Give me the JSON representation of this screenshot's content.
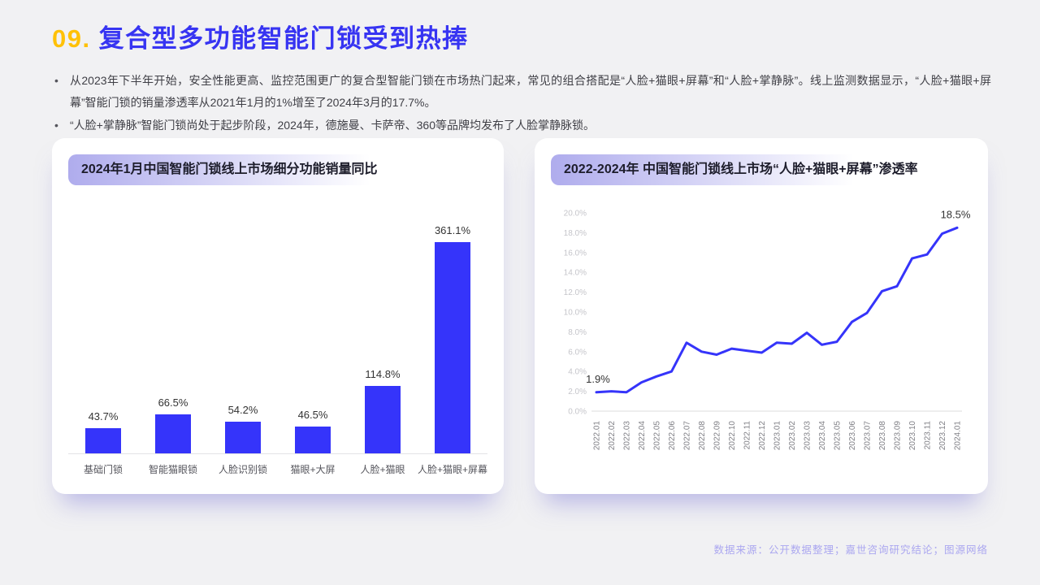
{
  "page": {
    "background": "#f1f1f3",
    "footer": "数据来源：公开数据整理；嘉世咨询研究结论；图源网络"
  },
  "header": {
    "number": "09.",
    "title": "复合型多功能智能门锁受到热捧"
  },
  "bullets": [
    "从2023年下半年开始，安全性能更高、监控范围更广的复合型智能门锁在市场热门起来，常见的组合搭配是“人脸+猫眼+屏幕”和“人脸+掌静脉”。线上监测数据显示，“人脸+猫眼+屏幕”智能门锁的销量渗透率从2021年1月的1%增至了2024年3月的17.7%。",
    "“人脸+掌静脉”智能门锁尚处于起步阶段，2024年，德施曼、卡萨帝、360等品牌均发布了人脸掌静脉锁。"
  ],
  "colors": {
    "accent_blue": "#3534fa",
    "title_blue": "#3734f2",
    "number_gold": "#ffc107",
    "pill_purple": "#afaced",
    "footer_purple": "#aba7f0",
    "axis_label_gray": "#c5c5ca",
    "x_label_gray": "#7f7f85",
    "value_label_dark": "#333333"
  },
  "chart_data": [
    {
      "type": "bar",
      "title": "2024年1月中国智能门锁线上市场细分功能销量同比",
      "categories": [
        "基础门锁",
        "智能猫眼锁",
        "人脸识别锁",
        "猫眼+大屏",
        "人脸+猫眼",
        "人脸+猫眼+屏幕"
      ],
      "values": [
        43.7,
        66.5,
        54.2,
        46.5,
        114.8,
        361.1
      ],
      "value_labels": [
        "43.7%",
        "66.5%",
        "54.2%",
        "46.5%",
        "114.8%",
        "361.1%"
      ],
      "xlabel": "",
      "ylabel": "",
      "ylim": [
        0,
        400
      ],
      "grid": false,
      "legend": "none",
      "bar_color": "#3534fa"
    },
    {
      "type": "line",
      "title": "2022-2024年 中国智能门锁线上市场“人脸+猫眼+屏幕”渗透率",
      "x": [
        "2022.01",
        "2022.02",
        "2022.03",
        "2022.04",
        "2022.05",
        "2022.06",
        "2022.07",
        "2022.08",
        "2022.09",
        "2022.10",
        "2022.11",
        "2022.12",
        "2023.01",
        "2023.02",
        "2023.03",
        "2023.04",
        "2023.05",
        "2023.06",
        "2023.07",
        "2023.08",
        "2023.09",
        "2023.10",
        "2023.11",
        "2023.12",
        "2024.01"
      ],
      "values": [
        1.9,
        2.0,
        1.9,
        2.9,
        3.5,
        4.0,
        6.9,
        6.0,
        5.7,
        6.3,
        6.1,
        5.9,
        6.9,
        6.8,
        7.9,
        6.7,
        7.0,
        9.0,
        9.9,
        12.1,
        12.6,
        15.4,
        15.8,
        17.9,
        18.5
      ],
      "y_ticks": [
        "0.0%",
        "2.0%",
        "4.0%",
        "6.0%",
        "8.0%",
        "10.0%",
        "12.0%",
        "14.0%",
        "16.0%",
        "18.0%",
        "20.0%"
      ],
      "ylim": [
        0,
        20
      ],
      "grid": false,
      "legend": "none",
      "annotations": [
        {
          "index": 0,
          "label": "1.9%"
        },
        {
          "index": 24,
          "label": "18.5%"
        }
      ],
      "line_color": "#3534fa"
    }
  ]
}
